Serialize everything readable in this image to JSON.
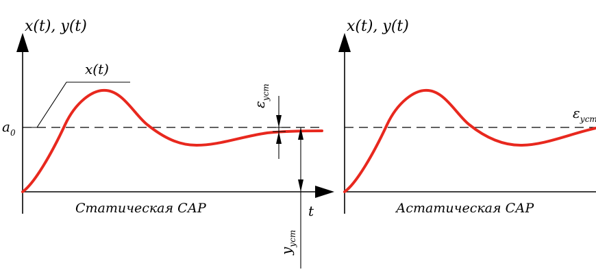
{
  "left_panel": {
    "y_axis_title": "x(t), y(t)",
    "x_axis_label": "t",
    "level_label": "a",
    "level_label_sub": "0",
    "curve_label": "x(t)",
    "error_label": "ε",
    "error_label_sub": "уст",
    "y_ust_label": "y",
    "y_ust_label_sub": "уст",
    "caption": "Статическая САР"
  },
  "right_panel": {
    "y_axis_title": "x(t), y(t)",
    "error_label": "ε",
    "error_label_sub": "уст",
    "caption": "Астатическая САР"
  },
  "colors": {
    "curve": "#e8281e",
    "axes": "#000000"
  }
}
